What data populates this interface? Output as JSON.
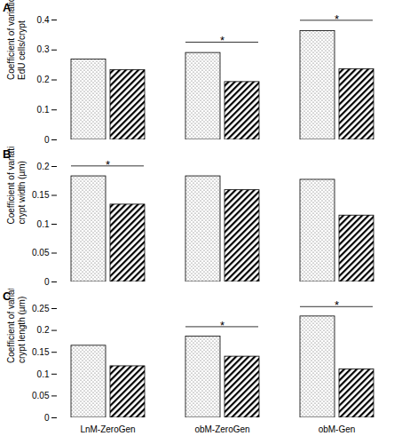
{
  "chart_data": [
    {
      "type": "bar",
      "title": "A",
      "y_label": "Coefficient of variation\nEdU cells/crypt",
      "categories": [
        "LnM-ZeroGen",
        "obM-ZeroGen",
        "obM-Gen"
      ],
      "series": [
        {
          "color": "#ffffff",
          "marker": "dots",
          "values": [
            0.268,
            0.29,
            0.363
          ]
        },
        {
          "color": "#ffffff",
          "marker": "hatch",
          "values": [
            0.233,
            0.193,
            0.236
          ]
        }
      ],
      "ylim": [
        0,
        0.4
      ],
      "yticks": [
        0,
        0.1,
        0.2,
        0.3,
        0.4
      ],
      "tick_labels": "y",
      "annotations": [
        {
          "category": "obM-ZeroGen",
          "text": "*"
        },
        {
          "category": "obM-Gen",
          "text": "*"
        }
      ]
    },
    {
      "type": "bar",
      "title": "B",
      "y_label": "Coefficient of variation\ncrypt width (µm)",
      "categories": [
        "LnM-ZeroGen",
        "obM-ZeroGen",
        "obM-Gen"
      ],
      "series": [
        {
          "color": "#ffffff",
          "marker": "dots",
          "values": [
            0.183,
            0.183,
            0.177
          ]
        },
        {
          "color": "#ffffff",
          "marker": "hatch",
          "values": [
            0.134,
            0.159,
            0.115
          ]
        }
      ],
      "ylim": [
        0,
        0.2
      ],
      "yticks": [
        0,
        0.05,
        0.1,
        0.15,
        0.2
      ],
      "tick_labels": "y",
      "annotations": [
        {
          "category": "LnM-ZeroGen",
          "text": "*"
        }
      ]
    },
    {
      "type": "bar",
      "title": "C",
      "y_label": "Coefficient of variation\ncrypt length (µm)",
      "categories": [
        "LnM-ZeroGen",
        "obM-ZeroGen",
        "obM-Gen"
      ],
      "series": [
        {
          "color": "#ffffff",
          "marker": "dots",
          "values": [
            0.165,
            0.186,
            0.232
          ]
        },
        {
          "color": "#ffffff",
          "marker": "hatch",
          "values": [
            0.118,
            0.14,
            0.111
          ]
        }
      ],
      "ylim": [
        0,
        0.25
      ],
      "yticks": [
        0,
        0.05,
        0.1,
        0.15,
        0.2,
        0.25
      ],
      "annotations": [
        {
          "category": "obM-ZeroGen",
          "text": "*"
        },
        {
          "category": "obM-Gen",
          "text": "*"
        }
      ]
    }
  ]
}
